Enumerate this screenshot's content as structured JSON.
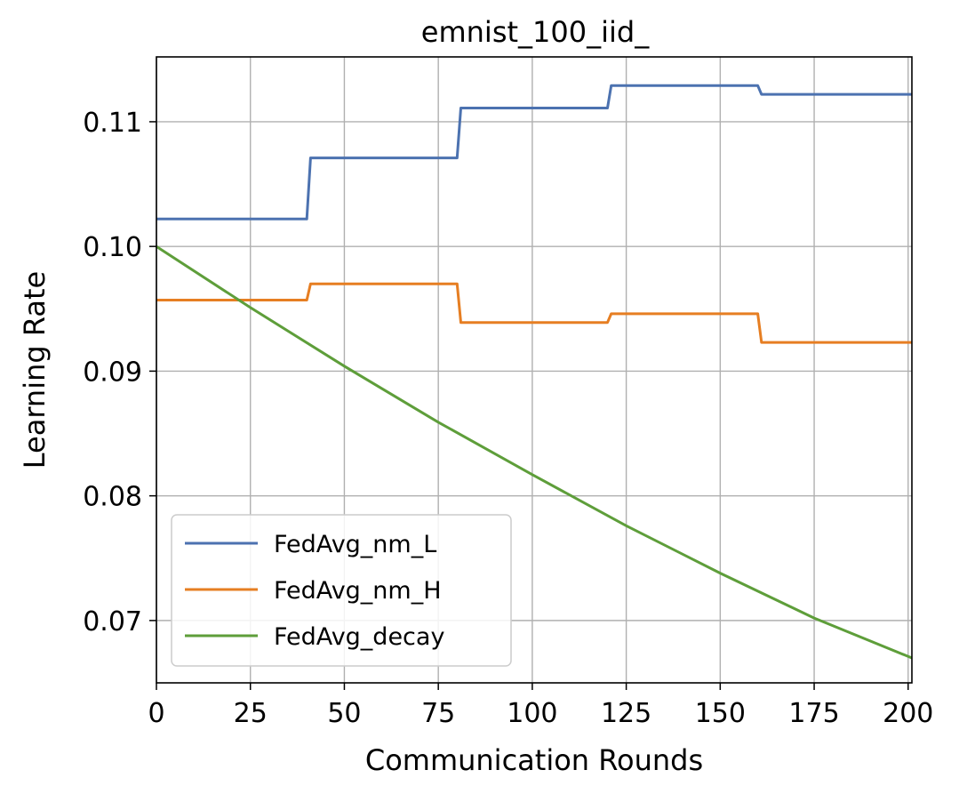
{
  "chart_data": {
    "type": "line",
    "title": "emnist_100_iid_",
    "xlabel": "Communication Rounds",
    "ylabel": "Learning Rate",
    "xlim": [
      0,
      201
    ],
    "ylim": [
      0.065,
      0.1152
    ],
    "xticks": [
      0,
      25,
      50,
      75,
      100,
      125,
      150,
      175,
      200
    ],
    "yticks": [
      0.07,
      0.08,
      0.09,
      0.1,
      0.11
    ],
    "ytick_labels": [
      "0.07",
      "0.08",
      "0.09",
      "0.10",
      "0.11"
    ],
    "grid": true,
    "legend_position": "lower-left",
    "series": [
      {
        "name": "FedAvg_nm_L",
        "color": "#4c72b0",
        "points": [
          [
            0,
            0.1022
          ],
          [
            40,
            0.1022
          ],
          [
            41,
            0.1071
          ],
          [
            80,
            0.1071
          ],
          [
            81,
            0.1111
          ],
          [
            120,
            0.1111
          ],
          [
            121,
            0.1129
          ],
          [
            160,
            0.1129
          ],
          [
            161,
            0.1122
          ],
          [
            201,
            0.1122
          ]
        ]
      },
      {
        "name": "FedAvg_nm_H",
        "color": "#e67e22",
        "points": [
          [
            0,
            0.0957
          ],
          [
            40,
            0.0957
          ],
          [
            41,
            0.097
          ],
          [
            80,
            0.097
          ],
          [
            81,
            0.0939
          ],
          [
            120,
            0.0939
          ],
          [
            121,
            0.0946
          ],
          [
            160,
            0.0946
          ],
          [
            161,
            0.0923
          ],
          [
            201,
            0.0923
          ]
        ]
      },
      {
        "name": "FedAvg_decay",
        "color": "#5e9e3a",
        "points": [
          [
            0,
            0.1
          ],
          [
            25,
            0.0951
          ],
          [
            50,
            0.0904
          ],
          [
            75,
            0.0859
          ],
          [
            100,
            0.0817
          ],
          [
            125,
            0.0776
          ],
          [
            150,
            0.0738
          ],
          [
            175,
            0.0702
          ],
          [
            201,
            0.067
          ]
        ]
      }
    ]
  }
}
